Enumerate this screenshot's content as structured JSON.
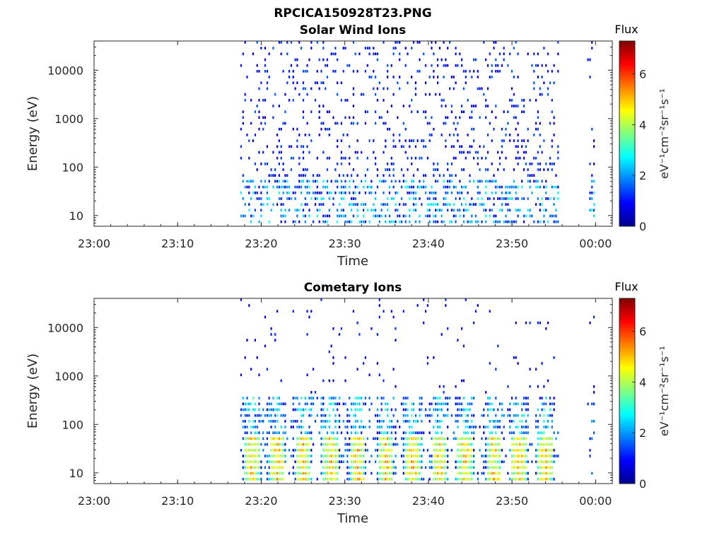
{
  "figure_title": "RPCICA150928T23.PNG",
  "colors": {
    "axis": "#262626",
    "colormap": [
      "#00008f",
      "#0000ff",
      "#0080ff",
      "#00ffff",
      "#80ff80",
      "#ffff00",
      "#ff8000",
      "#ff0000",
      "#800000"
    ]
  },
  "chart_data": [
    {
      "type": "heatmap",
      "title": "Solar Wind Ions",
      "xlabel": "Time",
      "ylabel": "Energy (eV)",
      "y_scale": "log",
      "xlim": [
        "23:00",
        "00:02"
      ],
      "ylim": [
        6,
        40000
      ],
      "x_ticks": [
        "23:00",
        "23:10",
        "23:20",
        "23:30",
        "23:40",
        "23:50",
        "00:00"
      ],
      "y_ticks": [
        "10",
        "100",
        "1000",
        "10000"
      ],
      "colorbar": {
        "title": "Flux",
        "label": "eV⁻¹cm⁻²sr⁻¹s⁻¹",
        "range": [
          0,
          7.3
        ],
        "ticks": [
          "0",
          "2",
          "4",
          "6"
        ]
      },
      "data_coverage": [
        [
          "23:17:30",
          "23:55:30"
        ],
        [
          "23:59:00",
          "23:59:50"
        ]
      ],
      "description_of_values": "sparse dots mostly 0.5-1.5 across 10-30000 eV, denser 1-3 below 100 eV"
    },
    {
      "type": "heatmap",
      "title": "Cometary Ions",
      "xlabel": "Time",
      "ylabel": "Energy (eV)",
      "y_scale": "log",
      "xlim": [
        "23:00",
        "00:02"
      ],
      "ylim": [
        6,
        40000
      ],
      "x_ticks": [
        "23:00",
        "23:10",
        "23:20",
        "23:30",
        "23:40",
        "23:50",
        "00:00"
      ],
      "y_ticks": [
        "10",
        "100",
        "1000",
        "10000"
      ],
      "colorbar": {
        "title": "Flux",
        "label": "eV⁻¹cm⁻²sr⁻¹s⁻¹",
        "range": [
          0,
          7.3
        ],
        "ticks": [
          "0",
          "2",
          "4",
          "6"
        ]
      },
      "data_coverage": [
        [
          "23:17:30",
          "23:55:30"
        ],
        [
          "23:59:00",
          "23:59:50"
        ]
      ],
      "bursts_minutes": [
        18.8,
        21.8,
        24.9,
        28.2,
        31.4,
        34.8,
        38.0,
        41.2,
        44.3,
        47.7,
        50.7,
        53.9
      ],
      "description_of_values": "periodic bursts with peak flux ~5-6 at 10-50 eV, tails up to ~300 eV"
    }
  ]
}
